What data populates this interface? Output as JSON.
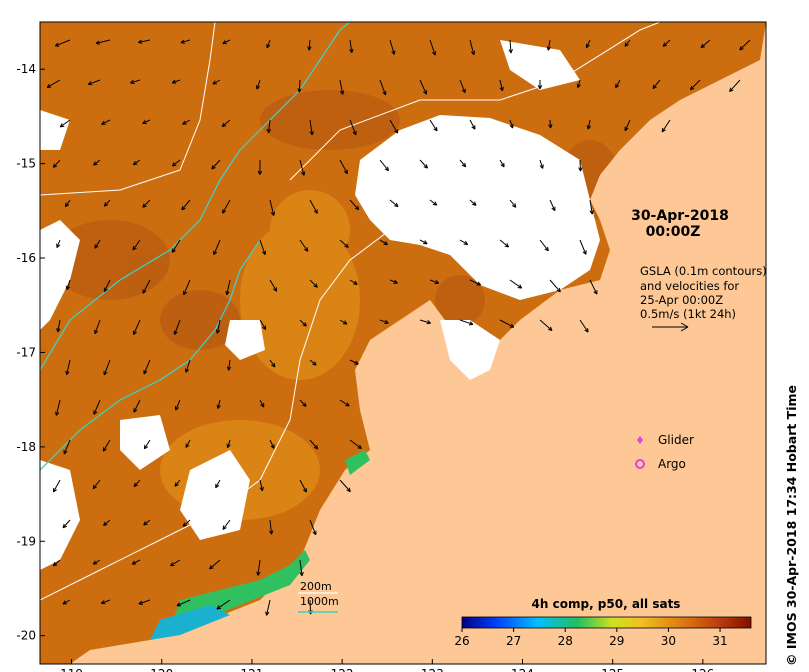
{
  "map": {
    "x_ticks": [
      "119",
      "120",
      "121",
      "122",
      "123",
      "124",
      "125",
      "126"
    ],
    "y_ticks": [
      "-14",
      "-15",
      "-16",
      "-17",
      "-18",
      "-19",
      "-20"
    ],
    "x_range": [
      118.65,
      126.7
    ],
    "y_range": [
      -20.3,
      -13.5
    ]
  },
  "annotation": {
    "date_line1": "30-Apr-2018",
    "date_line2": "00:00Z",
    "gsla_line1": "GSLA (0.1m contours)",
    "gsla_line2": "and velocities for",
    "gsla_line3": "25-Apr 00:00Z",
    "gsla_line4": "0.5m/s (1kt 24h)"
  },
  "legend": {
    "glider": "Glider",
    "argo": "Argo",
    "glider_color": "#e040e0",
    "argo_color": "#e040e0"
  },
  "bathymetry": {
    "label_200": "200m",
    "label_1000": "1000m",
    "color_200": "#ffffff",
    "color_1000": "#40d0c0"
  },
  "colorbar": {
    "title": "4h comp, p50, all sats",
    "ticks": [
      "26",
      "27",
      "28",
      "29",
      "30",
      "31"
    ],
    "range": [
      26,
      31.6
    ]
  },
  "credit": "© IMOS 30-Apr-2018 17:34 Hobart Time",
  "colors": {
    "land": "#fdc896",
    "sst_dominant": "#cc6e10",
    "no_data": "#ffffff"
  }
}
